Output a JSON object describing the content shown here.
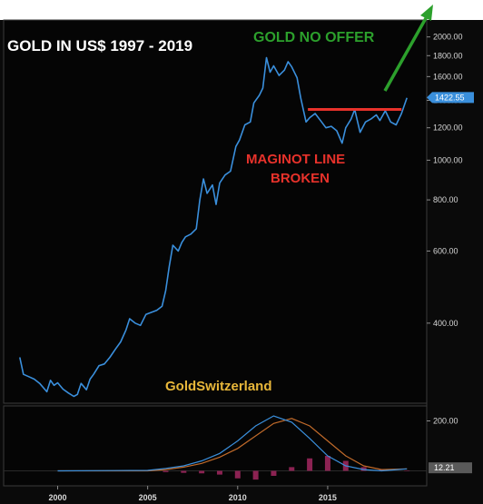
{
  "chart_data": {
    "type": "line",
    "title": "GOLD IN US$  1997 - 2019",
    "annotations": {
      "headline": "GOLD NO OFFER",
      "support_line": "MAGINOT LINE",
      "support_line_2": "BROKEN",
      "watermark": "GoldSwitzerland"
    },
    "y_scale": "log",
    "ylim": [
      255,
      2200
    ],
    "yticks": [
      "2000.00",
      "1800.00",
      "1600.00",
      "1400.00",
      "1200.00",
      "1000.00",
      "800.00",
      "600.00",
      "400.00"
    ],
    "xlim": [
      1997.0,
      2020.5
    ],
    "xticks": [
      "2000",
      "2005",
      "2010",
      "2015"
    ],
    "last_value_label": "1422.55",
    "maginot_level": 1330,
    "maginot_range": [
      2013.9,
      2019.1
    ],
    "colors": {
      "price": "#3a8fdc",
      "maginot": "#e8322b",
      "arrow": "#2ca02c",
      "tag": "#3a8fdc",
      "background": "#0a0a0a"
    },
    "series": [
      {
        "x": [
          1997.9,
          1998.1,
          1998.4,
          1998.7,
          1999.0,
          1999.4,
          1999.6,
          1999.8,
          2000.0,
          2000.3,
          2000.6,
          2000.9,
          2001.1,
          2001.3,
          2001.6,
          2001.8,
          2002.0,
          2002.3,
          2002.6,
          2002.9,
          2003.2,
          2003.5,
          2003.8,
          2004.0,
          2004.3,
          2004.6,
          2004.9,
          2005.2,
          2005.5,
          2005.8,
          2006.0,
          2006.2,
          2006.4,
          2006.7,
          2006.9,
          2007.1,
          2007.4,
          2007.7,
          2007.9,
          2008.1,
          2008.3,
          2008.6,
          2008.8,
          2009.0,
          2009.3,
          2009.6,
          2009.9,
          2010.1,
          2010.4,
          2010.7,
          2010.9,
          2011.2,
          2011.4,
          2011.6,
          2011.8,
          2012.0,
          2012.3,
          2012.6,
          2012.8,
          2013.0,
          2013.3,
          2013.5,
          2013.8,
          2014.0,
          2014.3,
          2014.6,
          2014.9,
          2015.2,
          2015.5,
          2015.8,
          2016.0,
          2016.3,
          2016.5,
          2016.8,
          2017.1,
          2017.4,
          2017.7,
          2017.9,
          2018.2,
          2018.5,
          2018.8,
          2019.1,
          2019.4
        ],
        "y": [
          330,
          300,
          296,
          292,
          285,
          272,
          290,
          282,
          286,
          276,
          270,
          265,
          268,
          285,
          275,
          292,
          300,
          315,
          318,
          330,
          345,
          360,
          385,
          410,
          400,
          395,
          420,
          425,
          430,
          440,
          480,
          550,
          620,
          600,
          630,
          650,
          660,
          680,
          800,
          900,
          830,
          870,
          780,
          880,
          920,
          940,
          1080,
          1120,
          1220,
          1240,
          1380,
          1440,
          1500,
          1780,
          1640,
          1700,
          1610,
          1660,
          1740,
          1690,
          1590,
          1420,
          1240,
          1270,
          1300,
          1250,
          1200,
          1210,
          1180,
          1100,
          1200,
          1260,
          1330,
          1170,
          1240,
          1260,
          1290,
          1250,
          1320,
          1240,
          1220,
          1300,
          1420
        ]
      }
    ],
    "indicator": {
      "ylim": [
        -60,
        260
      ],
      "ytick": "200.00",
      "last_value_label": "12.21",
      "x": [
        2000,
        2005,
        2006,
        2007,
        2008,
        2009,
        2010,
        2011,
        2012,
        2013,
        2014,
        2015,
        2016,
        2017,
        2018,
        2019.4
      ],
      "fast": [
        0,
        2,
        10,
        20,
        40,
        70,
        120,
        180,
        220,
        195,
        130,
        60,
        20,
        5,
        0,
        8
      ],
      "slow": [
        0,
        0,
        5,
        15,
        30,
        55,
        90,
        140,
        190,
        210,
        180,
        120,
        60,
        20,
        5,
        8
      ],
      "histogram": [
        0,
        0,
        -5,
        -8,
        -10,
        -15,
        -30,
        -35,
        -20,
        15,
        50,
        60,
        40,
        15,
        5,
        2
      ]
    }
  }
}
